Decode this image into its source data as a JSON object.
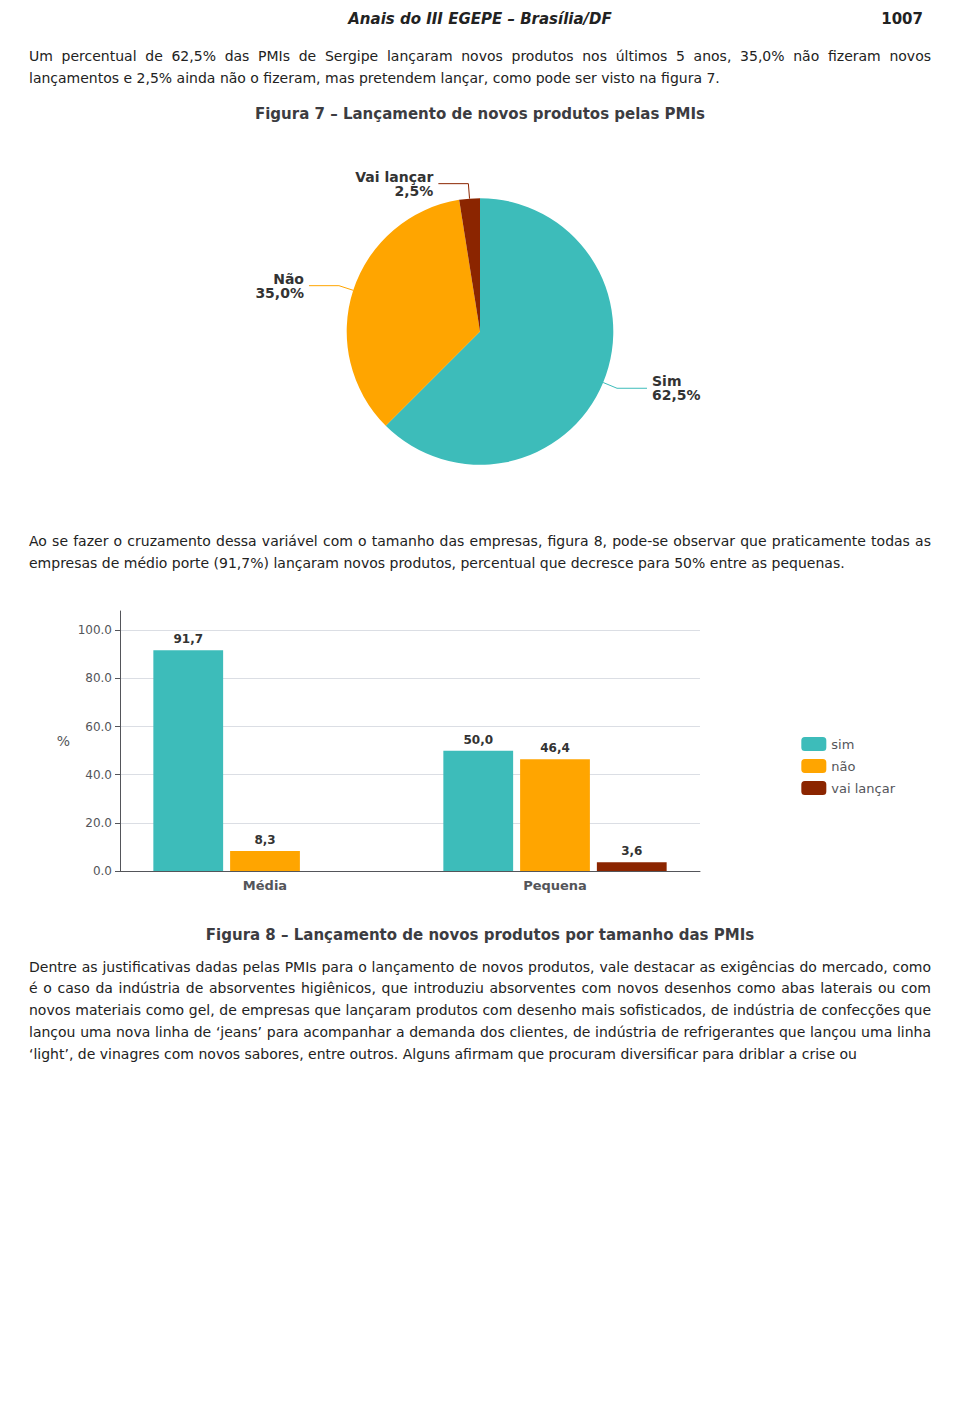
{
  "page": {
    "title": "Anais do III EGEPE – Brasília/DF",
    "number": "1007",
    "paragraphs": [
      "Um percentual de 62,5% das PMIs de Sergipe lançaram novos produtos nos últimos 5 anos, 35,0% não fizeram novos lançamentos e 2,5% ainda não o fizeram, mas pretendem lançar, como pode ser visto na figura 7.",
      "Ao se fazer o cruzamento dessa variável com o tamanho das empresas, figura 8, pode-se observar que praticamente todas as empresas de médio porte (91,7%) lançaram novos produtos, percentual que decresce para 50% entre as pequenas.",
      "Dentre as justificativas dadas pelas PMIs para o lançamento de novos produtos, vale destacar as exigências do mercado, como é o caso da indústria de absorventes higiênicos, que introduziu absorventes com novos desenhos como abas laterais ou com novos materiais como gel, de empresas que lançaram produtos com desenho mais sofisticados,  de indústria de confecções que lançou uma nova linha de ‘jeans’ para acompanhar a demanda dos clientes, de indústria de refrigerantes que lançou uma linha ‘light’, de vinagres com novos sabores,  entre outros.  Alguns afirmam que procuram diversificar para driblar a crise ou"
    ]
  },
  "chart_data": [
    {
      "type": "pie",
      "title": "Figura 7 – Lançamento de novos produtos pelas PMIs",
      "categories": [
        "Sim",
        "Não",
        "Vai lançar"
      ],
      "values": [
        62.5,
        35.0,
        2.5
      ],
      "value_labels": [
        "62,5%",
        "35,0%",
        "2,5%"
      ],
      "colors": [
        "#3DBCBA",
        "#FFA500",
        "#8B2500"
      ],
      "data_labels": true
    },
    {
      "type": "bar",
      "title": "Figura 8 – Lançamento de novos produtos por tamanho das PMIs",
      "categories": [
        "Média",
        "Pequena"
      ],
      "series": [
        {
          "name": "sim",
          "color": "#3DBCBA",
          "values": [
            91.7,
            50.0
          ],
          "value_labels": [
            "91,7",
            "50,0"
          ]
        },
        {
          "name": "não",
          "color": "#FFA500",
          "values": [
            8.3,
            46.4
          ],
          "value_labels": [
            "8,3",
            "46,4"
          ]
        },
        {
          "name": "vai lançar",
          "color": "#8B2500",
          "values": [
            0.0,
            3.6
          ],
          "value_labels": [
            null,
            "3,6"
          ]
        }
      ],
      "ylabel": "%",
      "ylim": [
        0,
        108
      ],
      "yticks": [
        {
          "value": 0,
          "label": "0.0"
        },
        {
          "value": 20,
          "label": "20.0"
        },
        {
          "value": 40,
          "label": "40.0"
        },
        {
          "value": 60,
          "label": "60.0"
        },
        {
          "value": 80,
          "label": "80.0"
        },
        {
          "value": 100,
          "label": "100.0"
        }
      ],
      "grid": true,
      "legend": "right",
      "data_labels": true
    }
  ]
}
